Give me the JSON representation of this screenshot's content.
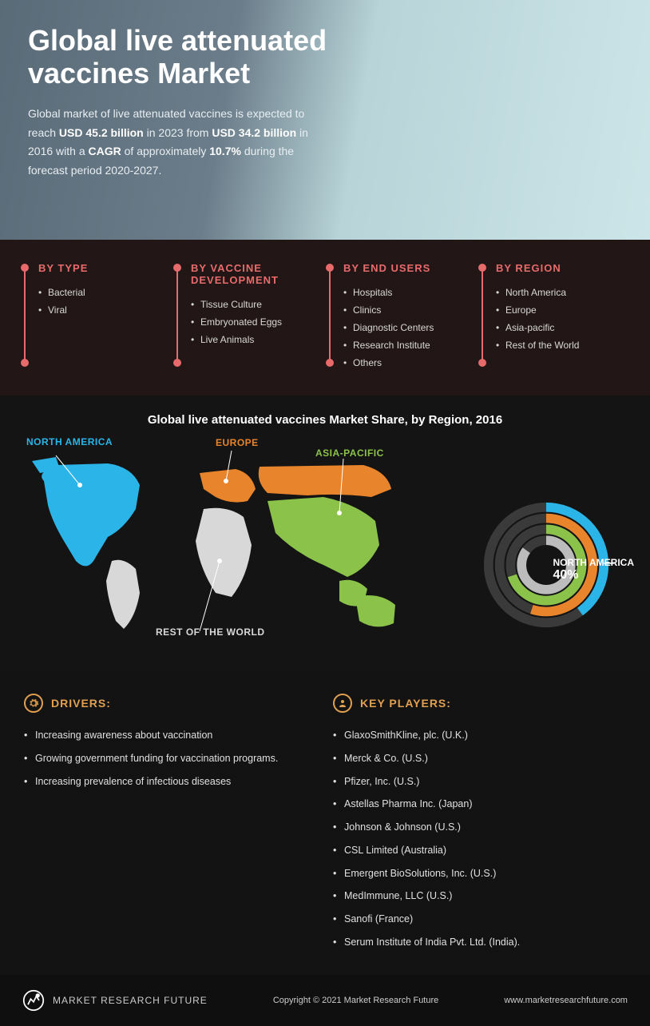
{
  "hero": {
    "title": "Global live attenuated vaccines Market",
    "text_parts": {
      "p1": "Global market of live attenuated vaccines is expected to reach ",
      "b1": "USD 45.2 billion",
      "p2": " in 2023 from ",
      "b2": "USD 34.2 billion",
      "p3": " in 2016 with a ",
      "b3": "CAGR",
      "p4": " of approximately ",
      "b4": "10.7%",
      "p5": " during the forecast period 2020-2027."
    },
    "bg_gradient_from": "#5a6b78",
    "bg_gradient_to": "#cce5e8"
  },
  "categories": {
    "accent_color": "#e86b6b",
    "columns": [
      {
        "title": "BY TYPE",
        "items": [
          "Bacterial",
          "Viral"
        ]
      },
      {
        "title": "BY VACCINE DEVELOPMENT",
        "items": [
          "Tissue Culture",
          "Embryonated Eggs",
          "Live Animals"
        ]
      },
      {
        "title": "BY END USERS",
        "items": [
          "Hospitals",
          "Clinics",
          "Diagnostic Centers",
          "Research Institute",
          "Others"
        ]
      },
      {
        "title": "BY REGION",
        "items": [
          "North America",
          "Europe",
          "Asia-pacific",
          "Rest of the World"
        ]
      }
    ]
  },
  "map": {
    "title": "Global live attenuated vaccines Market Share, by Region, 2016",
    "regions": {
      "north_america": {
        "label": "NORTH AMERICA",
        "color": "#2bb4e8"
      },
      "europe": {
        "label": "EUROPE",
        "color": "#e8842b"
      },
      "asia_pacific": {
        "label": "ASIA-PACIFIC",
        "color": "#8bc34a"
      },
      "rest": {
        "label": "REST OF THE WORLD",
        "color": "#d8d8d8"
      }
    },
    "radial": {
      "callout_region": "NORTH AMERICA",
      "callout_value": "40%",
      "rings": [
        {
          "color": "#2bb4e8",
          "radius": 68,
          "fraction": 0.4,
          "width": 11
        },
        {
          "color": "#e8842b",
          "radius": 55,
          "fraction": 0.55,
          "width": 11
        },
        {
          "color": "#8bc34a",
          "radius": 42,
          "fraction": 0.7,
          "width": 11
        },
        {
          "color": "#bcbcbc",
          "radius": 29,
          "fraction": 0.85,
          "width": 11
        }
      ],
      "track_color": "#3a3a3a"
    }
  },
  "bottom": {
    "accent_color": "#e0a050",
    "drivers": {
      "title": "DRIVERS:",
      "items": [
        "Increasing awareness about vaccination",
        "Growing government funding for vaccination programs.",
        "Increasing prevalence of infectious diseases"
      ]
    },
    "key_players": {
      "title": "KEY PLAYERS:",
      "items": [
        "GlaxoSmithKline, plc. (U.K.)",
        "Merck & Co. (U.S.)",
        "Pfizer, Inc. (U.S.)",
        "Astellas Pharma Inc. (Japan)",
        "Johnson & Johnson (U.S.)",
        "CSL Limited (Australia)",
        "Emergent BioSolutions, Inc. (U.S.)",
        "MedImmune, LLC (U.S.)",
        "Sanofi (France)",
        "Serum Institute of India Pvt. Ltd. (India)."
      ]
    }
  },
  "footer": {
    "brand": "MARKET RESEARCH FUTURE",
    "copyright": "Copyright © 2021 Market Research Future",
    "url": "www.marketresearchfuture.com"
  }
}
